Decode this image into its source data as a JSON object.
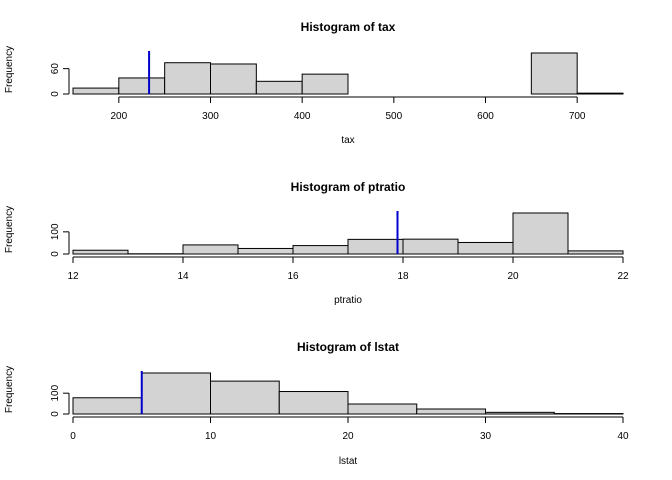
{
  "chart_data": [
    {
      "type": "bar",
      "title": "Histogram of tax",
      "xlabel": "tax",
      "ylabel": "Frequency",
      "bin_edges": [
        150,
        200,
        250,
        300,
        350,
        400,
        450,
        500,
        550,
        600,
        650,
        700,
        750
      ],
      "counts": [
        14,
        38,
        74,
        71,
        30,
        47,
        0,
        0,
        0,
        0,
        97,
        2
      ],
      "xlim": [
        150,
        750
      ],
      "ylim": [
        0,
        97
      ],
      "x_ticks": [
        200,
        300,
        400,
        500,
        600,
        700
      ],
      "y_ticks": [
        0,
        60
      ],
      "vline": {
        "value": 233,
        "color": "#0000cc"
      }
    },
    {
      "type": "bar",
      "title": "Histogram of ptratio",
      "xlabel": "ptratio",
      "ylabel": "Frequency",
      "bin_edges": [
        12,
        13,
        14,
        15,
        16,
        17,
        18,
        19,
        20,
        21,
        22
      ],
      "counts": [
        17,
        1,
        41,
        25,
        38,
        66,
        67,
        52,
        185,
        14
      ],
      "xlim": [
        12,
        22
      ],
      "ylim": [
        0,
        185
      ],
      "x_ticks": [
        12,
        14,
        16,
        18,
        20,
        22
      ],
      "y_ticks": [
        0,
        100
      ],
      "vline": {
        "value": 17.9,
        "color": "#0000cc"
      }
    },
    {
      "type": "bar",
      "title": "Histogram of lstat",
      "xlabel": "lstat",
      "ylabel": "Frequency",
      "bin_edges": [
        0,
        5,
        10,
        15,
        20,
        25,
        30,
        35,
        40
      ],
      "counts": [
        78,
        197,
        158,
        108,
        48,
        24,
        8,
        2
      ],
      "xlim": [
        0,
        40
      ],
      "ylim": [
        0,
        197
      ],
      "x_ticks": [
        0,
        10,
        20,
        30,
        40
      ],
      "y_ticks": [
        0,
        100
      ],
      "vline": {
        "value": 5,
        "color": "#0000cc"
      }
    }
  ]
}
